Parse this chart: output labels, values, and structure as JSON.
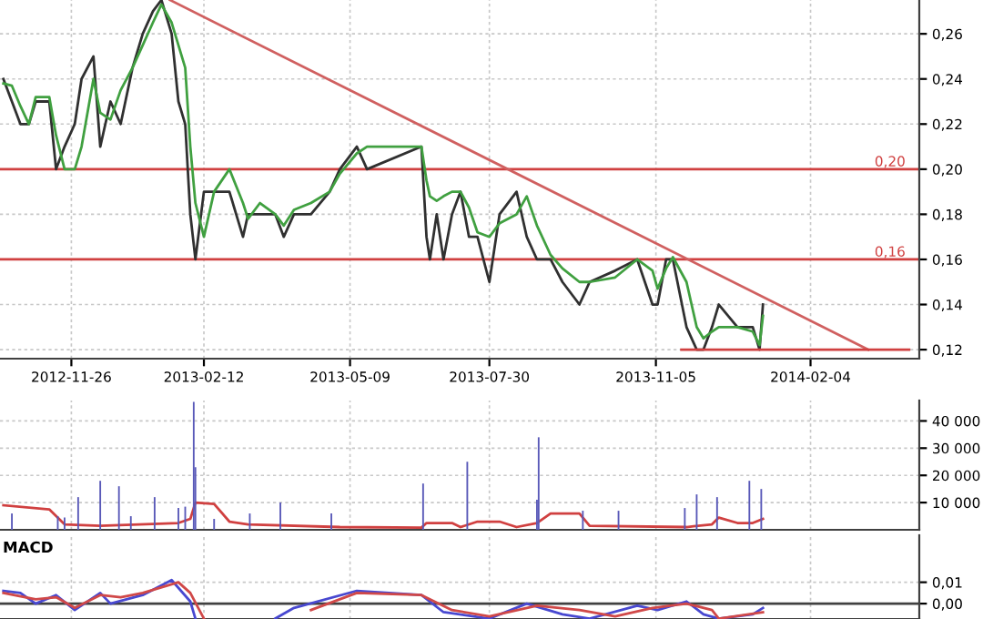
{
  "chart_data": [
    {
      "type": "line",
      "xlim": [
        "2012-10-15",
        "2014-04-09"
      ],
      "ylim": [
        0.116,
        0.275
      ],
      "xticks": [
        "2012-11-26",
        "2013-02-12",
        "2013-05-09",
        "2013-07-30",
        "2013-11-05",
        "2014-02-04"
      ],
      "yticks": [
        {
          "value": 0.12,
          "label": "0,12"
        },
        {
          "value": 0.14,
          "label": "0,14"
        },
        {
          "value": 0.16,
          "label": "0,16"
        },
        {
          "value": 0.18,
          "label": "0,18"
        },
        {
          "value": 0.2,
          "label": "0,20"
        },
        {
          "value": 0.22,
          "label": "0,22"
        },
        {
          "value": 0.24,
          "label": "0,24"
        },
        {
          "value": 0.26,
          "label": "0,26"
        }
      ],
      "grid": true,
      "line_style": "solid",
      "ref_lines": [
        {
          "axis": "y",
          "value": 0.2,
          "label": "0,20",
          "color": "#d04040"
        },
        {
          "axis": "y",
          "value": 0.16,
          "label": "0,16",
          "color": "#d04040"
        }
      ],
      "series": [
        {
          "color": "#303030",
          "x": [
            "2012-10-17",
            "2012-10-22",
            "2012-10-27",
            "2012-11-01",
            "2012-11-05",
            "2012-11-13",
            "2012-11-17",
            "2012-11-22",
            "2012-11-28",
            "2012-12-02",
            "2012-12-09",
            "2012-12-13",
            "2012-12-19",
            "2012-12-25",
            "2013-01-01",
            "2013-01-07",
            "2013-01-13",
            "2013-01-18",
            "2013-01-24",
            "2013-01-28",
            "2013-02-01",
            "2013-02-04",
            "2013-02-07",
            "2013-02-12",
            "2013-02-18",
            "2013-02-27",
            "2013-03-07",
            "2013-03-10",
            "2013-03-17",
            "2013-03-26",
            "2013-03-31",
            "2013-04-06",
            "2013-04-16",
            "2013-04-27",
            "2013-05-03",
            "2013-05-13",
            "2013-05-19",
            "2013-06-20",
            "2013-06-23",
            "2013-06-25",
            "2013-06-29",
            "2013-07-03",
            "2013-07-08",
            "2013-07-13",
            "2013-07-18",
            "2013-07-23",
            "2013-07-30",
            "2013-08-05",
            "2013-08-15",
            "2013-08-21",
            "2013-08-27",
            "2013-09-04",
            "2013-09-11",
            "2013-09-21",
            "2013-09-27",
            "2013-10-12",
            "2013-10-25",
            "2013-11-03",
            "2013-11-06",
            "2013-11-11",
            "2013-11-15",
            "2013-11-23",
            "2013-11-29",
            "2013-12-03",
            "2013-12-08",
            "2013-12-12",
            "2013-12-23",
            "2014-01-01",
            "2014-01-05",
            "2014-01-07"
          ],
          "values": [
            0.24,
            0.23,
            0.22,
            0.22,
            0.23,
            0.23,
            0.2,
            0.21,
            0.22,
            0.24,
            0.25,
            0.21,
            0.23,
            0.22,
            0.245,
            0.26,
            0.27,
            0.275,
            0.26,
            0.23,
            0.22,
            0.18,
            0.16,
            0.19,
            0.19,
            0.19,
            0.17,
            0.18,
            0.18,
            0.18,
            0.17,
            0.18,
            0.18,
            0.19,
            0.2,
            0.21,
            0.2,
            0.21,
            0.17,
            0.16,
            0.18,
            0.16,
            0.18,
            0.19,
            0.17,
            0.17,
            0.15,
            0.18,
            0.19,
            0.17,
            0.16,
            0.16,
            0.15,
            0.14,
            0.15,
            0.155,
            0.16,
            0.14,
            0.14,
            0.16,
            0.16,
            0.13,
            0.12,
            0.12,
            0.13,
            0.14,
            0.13,
            0.13,
            0.12,
            0.14
          ]
        },
        {
          "color": "#40a040",
          "x": [
            "2012-10-17",
            "2012-10-22",
            "2012-10-27",
            "2012-11-01",
            "2012-11-05",
            "2012-11-13",
            "2012-11-17",
            "2012-11-22",
            "2012-11-28",
            "2012-12-02",
            "2012-12-09",
            "2012-12-13",
            "2012-12-19",
            "2012-12-25",
            "2013-01-01",
            "2013-01-07",
            "2013-01-13",
            "2013-01-18",
            "2013-01-24",
            "2013-01-28",
            "2013-02-01",
            "2013-02-04",
            "2013-02-07",
            "2013-02-12",
            "2013-02-18",
            "2013-02-27",
            "2013-03-07",
            "2013-03-10",
            "2013-03-17",
            "2013-03-26",
            "2013-03-31",
            "2013-04-06",
            "2013-04-16",
            "2013-04-27",
            "2013-05-03",
            "2013-05-13",
            "2013-05-19",
            "2013-06-20",
            "2013-06-23",
            "2013-06-25",
            "2013-06-29",
            "2013-07-03",
            "2013-07-08",
            "2013-07-13",
            "2013-07-18",
            "2013-07-23",
            "2013-07-30",
            "2013-08-05",
            "2013-08-15",
            "2013-08-21",
            "2013-08-27",
            "2013-09-04",
            "2013-09-11",
            "2013-09-21",
            "2013-09-27",
            "2013-10-12",
            "2013-10-25",
            "2013-11-03",
            "2013-11-06",
            "2013-11-11",
            "2013-11-15",
            "2013-11-23",
            "2013-11-29",
            "2013-12-03",
            "2013-12-08",
            "2013-12-12",
            "2013-12-23",
            "2014-01-01",
            "2014-01-05",
            "2014-01-07"
          ],
          "values": [
            0.238,
            0.237,
            0.228,
            0.22,
            0.232,
            0.232,
            0.215,
            0.2,
            0.2,
            0.21,
            0.24,
            0.225,
            0.222,
            0.235,
            0.245,
            0.255,
            0.265,
            0.273,
            0.265,
            0.255,
            0.245,
            0.21,
            0.185,
            0.17,
            0.19,
            0.2,
            0.185,
            0.178,
            0.185,
            0.18,
            0.175,
            0.182,
            0.185,
            0.19,
            0.198,
            0.207,
            0.21,
            0.21,
            0.195,
            0.188,
            0.186,
            0.188,
            0.19,
            0.19,
            0.183,
            0.172,
            0.17,
            0.176,
            0.18,
            0.188,
            0.175,
            0.162,
            0.156,
            0.15,
            0.15,
            0.152,
            0.16,
            0.155,
            0.147,
            0.156,
            0.161,
            0.15,
            0.13,
            0.125,
            0.128,
            0.13,
            0.13,
            0.128,
            0.122,
            0.135
          ]
        },
        {
          "color": "#d06060",
          "x": [
            "2013-01-23",
            "2014-03-10"
          ],
          "values": [
            0.275,
            0.12
          ]
        },
        {
          "color": "#d04040",
          "x": [
            "2013-11-20",
            "2014-04-03"
          ],
          "values": [
            0.12,
            0.12
          ]
        }
      ]
    },
    {
      "type": "bar",
      "xlim": [
        "2012-10-15",
        "2014-04-09"
      ],
      "ylim": [
        0,
        47500
      ],
      "tick_labels": "y",
      "xticks": [
        "2012-11-26",
        "2013-02-12",
        "2013-05-09",
        "2013-07-30",
        "2013-11-05",
        "2014-02-04"
      ],
      "yticks": [
        {
          "value": 10000,
          "label": "10 000"
        },
        {
          "value": 20000,
          "label": "20 000"
        },
        {
          "value": 30000,
          "label": "30 000"
        },
        {
          "value": 40000,
          "label": "40 000"
        }
      ],
      "grid": true,
      "series": [
        {
          "color": "#5858b8",
          "x": [
            "2012-10-22",
            "2012-11-18",
            "2012-11-22",
            "2012-11-30",
            "2012-12-13",
            "2012-12-24",
            "2012-12-31",
            "2013-01-14",
            "2013-01-28",
            "2013-02-01",
            "2013-02-06",
            "2013-02-07",
            "2013-02-18",
            "2013-03-11",
            "2013-03-29",
            "2013-04-28",
            "2013-06-21",
            "2013-07-17",
            "2013-08-27",
            "2013-08-28",
            "2013-09-23",
            "2013-10-14",
            "2013-11-22",
            "2013-11-29",
            "2013-12-11",
            "2013-12-30",
            "2014-01-06"
          ],
          "values": [
            6000,
            5000,
            4500,
            12000,
            18000,
            16000,
            5000,
            12000,
            8000,
            8500,
            47000,
            23000,
            4000,
            6000,
            10000,
            6000,
            17000,
            25000,
            11000,
            34000,
            7000,
            7000,
            8000,
            13000,
            12000,
            18000,
            15000
          ]
        },
        {
          "type": "line",
          "color": "#d04040",
          "x": [
            "2012-10-17",
            "2012-11-13",
            "2012-11-22",
            "2012-12-13",
            "2013-01-28",
            "2013-02-04",
            "2013-02-07",
            "2013-02-18",
            "2013-02-27",
            "2013-03-10",
            "2013-05-03",
            "2013-06-20",
            "2013-06-23",
            "2013-07-08",
            "2013-07-13",
            "2013-07-23",
            "2013-08-05",
            "2013-08-15",
            "2013-08-27",
            "2013-09-04",
            "2013-09-21",
            "2013-09-27",
            "2013-11-23",
            "2013-12-08",
            "2013-12-12",
            "2013-12-23",
            "2014-01-01",
            "2014-01-07"
          ],
          "values": [
            9000,
            7500,
            2000,
            1500,
            2500,
            4000,
            10000,
            9500,
            3000,
            2000,
            1000,
            800,
            2500,
            2500,
            1000,
            3000,
            3000,
            1000,
            2500,
            6000,
            6000,
            1500,
            1000,
            2000,
            4500,
            2500,
            2500,
            4000
          ]
        }
      ]
    },
    {
      "type": "line",
      "title": "MACD",
      "xlim": [
        "2012-10-15",
        "2014-04-09"
      ],
      "ylim": [
        -0.0072,
        0.032
      ],
      "tick_labels": "y",
      "xticks": [
        "2012-11-26",
        "2013-02-12",
        "2013-05-09",
        "2013-07-30",
        "2013-11-05",
        "2014-02-04"
      ],
      "yticks": [
        {
          "value": 0,
          "label": "0,00"
        },
        {
          "value": 0.01,
          "label": "0,01"
        }
      ],
      "grid": true,
      "ref_lines": [
        {
          "axis": "y",
          "value": 0,
          "color": "#404040"
        }
      ],
      "series": [
        {
          "color": "#4848d0",
          "x": [
            "2012-10-17",
            "2012-10-27",
            "2012-11-05",
            "2012-11-17",
            "2012-11-28",
            "2012-12-13",
            "2012-12-19",
            "2013-01-07",
            "2013-01-24",
            "2013-02-04",
            "2013-02-07",
            "2013-02-27",
            "2013-03-26",
            "2013-04-06",
            "2013-05-13",
            "2013-06-20",
            "2013-07-03",
            "2013-07-30",
            "2013-08-21",
            "2013-09-11",
            "2013-09-27",
            "2013-10-25",
            "2013-11-06",
            "2013-11-23",
            "2013-12-03",
            "2013-12-12",
            "2014-01-01",
            "2014-01-07"
          ],
          "values": [
            0.006,
            0.005,
            0.0,
            0.004,
            -0.003,
            0.005,
            0.0,
            0.004,
            0.011,
            0.001,
            -0.007,
            null,
            -0.007,
            -0.002,
            0.006,
            0.004,
            -0.004,
            -0.007,
            0.0,
            -0.005,
            -0.007,
            -0.001,
            -0.003,
            0.001,
            -0.005,
            -0.007,
            -0.005,
            -0.002
          ]
        },
        {
          "color": "#d04848",
          "x": [
            "2012-10-17",
            "2012-11-05",
            "2012-11-17",
            "2012-11-28",
            "2012-12-13",
            "2012-12-25",
            "2013-01-07",
            "2013-01-28",
            "2013-02-04",
            "2013-02-12",
            "2013-02-27",
            "2013-04-16",
            "2013-05-13",
            "2013-06-20",
            "2013-07-08",
            "2013-07-30",
            "2013-08-27",
            "2013-09-21",
            "2013-10-12",
            "2013-11-03",
            "2013-11-23",
            "2013-12-08",
            "2013-12-12",
            "2014-01-07"
          ],
          "values": [
            0.005,
            0.002,
            0.003,
            -0.002,
            0.004,
            0.003,
            0.005,
            0.01,
            0.005,
            -0.007,
            null,
            -0.003,
            0.005,
            0.004,
            -0.003,
            -0.006,
            -0.001,
            -0.003,
            -0.006,
            -0.002,
            0.0,
            -0.003,
            -0.007,
            -0.004
          ]
        }
      ]
    }
  ]
}
